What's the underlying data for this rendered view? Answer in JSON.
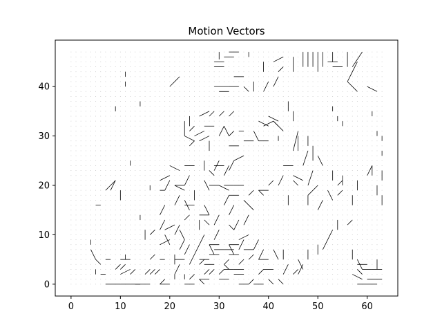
{
  "chart_data": {
    "type": "quiver",
    "title": "Motion Vectors",
    "xlabel": "",
    "ylabel": "",
    "xlim": [
      -3.2,
      66.2
    ],
    "ylim": [
      -2.4,
      49.4
    ],
    "xticks": [
      0,
      10,
      20,
      30,
      40,
      50,
      60
    ],
    "yticks": [
      0,
      10,
      20,
      30,
      40
    ],
    "grid": false,
    "grid_points": {
      "x_start": 0,
      "x_end": 63,
      "y_start": 0,
      "y_end": 47,
      "step": 1
    },
    "line_color": "#000000",
    "dot_color": "#bbbbbb",
    "vectors": [
      [
        30,
        47,
        0,
        -1.5
      ],
      [
        32,
        47,
        2,
        0
      ],
      [
        33,
        46,
        -2,
        0
      ],
      [
        31,
        45,
        -2,
        0
      ],
      [
        31,
        44,
        -2,
        0
      ],
      [
        35,
        42,
        -2,
        0
      ],
      [
        36,
        47,
        0,
        -1
      ],
      [
        43,
        46,
        -2,
        -1
      ],
      [
        45,
        46,
        0,
        -3
      ],
      [
        47,
        47,
        0,
        -3
      ],
      [
        48,
        47,
        0,
        -3
      ],
      [
        49,
        47,
        0,
        -3
      ],
      [
        50,
        47,
        0,
        -4
      ],
      [
        51,
        47,
        0,
        -3
      ],
      [
        53,
        47,
        0,
        -2
      ],
      [
        56,
        47,
        0,
        -3
      ],
      [
        54,
        45,
        -2,
        0
      ],
      [
        55,
        44,
        -2,
        0
      ],
      [
        57,
        44,
        2,
        3
      ],
      [
        58,
        45,
        -2,
        -4
      ],
      [
        60,
        40,
        2,
        -1
      ],
      [
        56,
        41,
        2,
        -2
      ],
      [
        40,
        41,
        -1,
        -2
      ],
      [
        42,
        42,
        -1,
        -2
      ],
      [
        43,
        44,
        -1,
        -1
      ],
      [
        39,
        45,
        0,
        -2
      ],
      [
        34,
        40,
        -2,
        0
      ],
      [
        32,
        40,
        -3,
        0
      ],
      [
        32,
        39,
        -2,
        0
      ],
      [
        35,
        40,
        1,
        -1
      ],
      [
        20,
        40,
        2,
        2
      ],
      [
        11,
        43,
        0,
        -1
      ],
      [
        11,
        41,
        0,
        -1
      ],
      [
        9,
        36,
        0,
        -1
      ],
      [
        14,
        37,
        0,
        -1
      ],
      [
        37,
        41,
        0,
        -2
      ],
      [
        44,
        37,
        0,
        -2
      ],
      [
        45,
        35,
        0,
        -2
      ],
      [
        53,
        36,
        0,
        -1
      ],
      [
        54,
        34,
        0,
        -1
      ],
      [
        55,
        33,
        0,
        -1
      ],
      [
        61,
        35,
        0,
        -1
      ],
      [
        24,
        34,
        0,
        -2
      ],
      [
        26,
        34,
        2,
        1
      ],
      [
        28,
        34,
        1,
        1
      ],
      [
        30,
        34,
        1,
        1
      ],
      [
        32,
        34,
        1,
        1
      ],
      [
        29,
        32,
        -2,
        0
      ],
      [
        27,
        31,
        -2,
        -1
      ],
      [
        25,
        32,
        -1,
        -1
      ],
      [
        23,
        33,
        0,
        -3
      ],
      [
        23,
        30,
        2,
        -1
      ],
      [
        24,
        28,
        1,
        1
      ],
      [
        26,
        29,
        2,
        1
      ],
      [
        28,
        29,
        0,
        -2
      ],
      [
        30,
        30,
        1,
        2
      ],
      [
        31,
        32,
        1,
        -2
      ],
      [
        33,
        31,
        -1,
        -1
      ],
      [
        35,
        31,
        -1,
        0
      ],
      [
        37,
        31,
        1,
        -2
      ],
      [
        38,
        33,
        2,
        -1
      ],
      [
        39,
        32,
        2,
        1
      ],
      [
        40,
        34,
        2,
        -1
      ],
      [
        41,
        33,
        1,
        -1
      ],
      [
        43,
        31,
        -2,
        2
      ],
      [
        42,
        30,
        0,
        -1
      ],
      [
        40,
        29,
        -2,
        0
      ],
      [
        37,
        29,
        -2,
        0
      ],
      [
        34,
        28,
        -2,
        0
      ],
      [
        35,
        26,
        -2,
        -1
      ],
      [
        33,
        25,
        -1,
        -2
      ],
      [
        31,
        24,
        -2,
        0
      ],
      [
        29,
        23,
        1,
        2
      ],
      [
        27,
        25,
        0,
        -2
      ],
      [
        25,
        24,
        -2,
        0
      ],
      [
        24,
        22,
        -1,
        -2
      ],
      [
        22,
        23,
        -2,
        1
      ],
      [
        20,
        22,
        -2,
        -1
      ],
      [
        21,
        20,
        2,
        -1
      ],
      [
        23,
        20,
        -2,
        0
      ],
      [
        25,
        19,
        0,
        -2
      ],
      [
        27,
        21,
        1,
        -2
      ],
      [
        29,
        22,
        -1,
        1
      ],
      [
        31,
        22,
        1,
        2
      ],
      [
        33,
        20,
        -2,
        0
      ],
      [
        35,
        20,
        -2,
        0
      ],
      [
        32,
        19,
        -2,
        1
      ],
      [
        30,
        20,
        -2,
        0
      ],
      [
        34,
        18,
        -2,
        0
      ],
      [
        36,
        18,
        1,
        1
      ],
      [
        38,
        19,
        1,
        -1
      ],
      [
        40,
        19,
        -2,
        0
      ],
      [
        41,
        21,
        -1,
        -1
      ],
      [
        42,
        20,
        1,
        2
      ],
      [
        45,
        24,
        -2,
        0
      ],
      [
        47,
        24,
        1,
        3
      ],
      [
        45,
        27,
        1,
        4
      ],
      [
        46,
        30,
        0,
        -3
      ],
      [
        48,
        30,
        0,
        -2
      ],
      [
        49,
        28,
        0,
        -3
      ],
      [
        50,
        26,
        1,
        -2
      ],
      [
        49,
        23,
        -1,
        -3
      ],
      [
        50,
        20,
        -2,
        -2
      ],
      [
        52,
        19,
        1,
        -2
      ],
      [
        51,
        17,
        -1,
        -2
      ],
      [
        48,
        18,
        0,
        -2
      ],
      [
        47,
        21,
        -2,
        1
      ],
      [
        45,
        21,
        1,
        -1
      ],
      [
        44,
        18,
        0,
        -2
      ],
      [
        53,
        23,
        0,
        -2
      ],
      [
        55,
        22,
        0,
        -2
      ],
      [
        54,
        20,
        1,
        1
      ],
      [
        55,
        19,
        -1,
        -1
      ],
      [
        57,
        18,
        0,
        -2
      ],
      [
        58,
        21,
        0,
        -2
      ],
      [
        60,
        22,
        1,
        2
      ],
      [
        61,
        24,
        0,
        -2
      ],
      [
        63,
        23,
        0,
        -2
      ],
      [
        62,
        20,
        0,
        -2
      ],
      [
        63,
        18,
        0,
        -2
      ],
      [
        63,
        27,
        0,
        -1
      ],
      [
        62,
        31,
        0,
        -1
      ],
      [
        63,
        30,
        0,
        -1
      ],
      [
        5,
        16,
        1,
        0
      ],
      [
        7,
        19,
        2,
        2
      ],
      [
        9,
        21,
        -1,
        -2
      ],
      [
        10,
        19,
        0,
        -2
      ],
      [
        12,
        25,
        0,
        -1
      ],
      [
        14,
        14,
        0,
        -1
      ],
      [
        19,
        16,
        -1,
        -2
      ],
      [
        18,
        19,
        1,
        0
      ],
      [
        20,
        21,
        -1,
        -2
      ],
      [
        16,
        20,
        0,
        -1
      ],
      [
        22,
        18,
        -1,
        -2
      ],
      [
        23,
        17,
        1,
        -2
      ],
      [
        25,
        16,
        -2,
        0
      ],
      [
        27,
        16,
        1,
        -2
      ],
      [
        28,
        14,
        -2,
        0
      ],
      [
        30,
        14,
        -1,
        -2
      ],
      [
        31,
        16,
        1,
        2
      ],
      [
        33,
        16,
        -1,
        -2
      ],
      [
        35,
        17,
        2,
        -2
      ],
      [
        36,
        14,
        -1,
        -2
      ],
      [
        34,
        13,
        -1,
        -2
      ],
      [
        32,
        12,
        1,
        -1
      ],
      [
        30,
        11,
        -1,
        -2
      ],
      [
        28,
        12,
        -1,
        1
      ],
      [
        27,
        10,
        -1,
        -2
      ],
      [
        26,
        13,
        0,
        -2
      ],
      [
        24,
        14,
        -1,
        -1
      ],
      [
        22,
        12,
        -1,
        -2
      ],
      [
        21,
        12,
        -2,
        -1
      ],
      [
        19,
        13,
        -1,
        -2
      ],
      [
        17,
        11,
        -1,
        -1
      ],
      [
        15,
        11,
        0,
        -2
      ],
      [
        19,
        10,
        1,
        -2
      ],
      [
        20,
        9,
        -2,
        -1
      ],
      [
        22,
        11,
        1,
        -2
      ],
      [
        23,
        9,
        -1,
        -2
      ],
      [
        24,
        8,
        -1,
        -2
      ],
      [
        26,
        8,
        -1,
        -2
      ],
      [
        28,
        8,
        1,
        -2
      ],
      [
        30,
        8,
        -2,
        0
      ],
      [
        32,
        8,
        1,
        -2
      ],
      [
        34,
        8,
        -2,
        0
      ],
      [
        35,
        9,
        -1,
        -2
      ],
      [
        36,
        10,
        -2,
        -1
      ],
      [
        38,
        9,
        -1,
        -2
      ],
      [
        37,
        7,
        -2,
        0
      ],
      [
        39,
        7,
        -1,
        -2
      ],
      [
        40,
        5,
        -2,
        0
      ],
      [
        41,
        7,
        1,
        -2
      ],
      [
        43,
        7,
        0,
        -2
      ],
      [
        44,
        4,
        -1,
        -2
      ],
      [
        46,
        5,
        1,
        -2
      ],
      [
        45,
        2,
        1,
        1
      ],
      [
        47,
        4,
        -1,
        -2
      ],
      [
        48,
        7,
        0,
        -2
      ],
      [
        50,
        8,
        0,
        -2
      ],
      [
        52,
        9,
        -1,
        -2
      ],
      [
        53,
        11,
        -1,
        -2
      ],
      [
        54,
        13,
        0,
        -2
      ],
      [
        56,
        12,
        1,
        1
      ],
      [
        57,
        7,
        0,
        -2
      ],
      [
        58,
        5,
        1,
        -2
      ],
      [
        60,
        4,
        -2,
        0
      ],
      [
        61,
        3,
        -2,
        0
      ],
      [
        62,
        5,
        0,
        -2
      ],
      [
        63,
        3,
        -2,
        0
      ],
      [
        63,
        1,
        -3,
        0
      ],
      [
        62,
        0,
        -2,
        0
      ],
      [
        60,
        0,
        -2,
        0
      ],
      [
        59,
        2,
        -1,
        1
      ],
      [
        57,
        2,
        2,
        -1
      ],
      [
        4,
        7,
        1,
        -2
      ],
      [
        5,
        5,
        1,
        -1
      ],
      [
        5,
        3,
        0,
        -1
      ],
      [
        4,
        9,
        0,
        -1
      ],
      [
        6,
        2,
        1,
        0
      ],
      [
        7,
        0,
        1,
        0
      ],
      [
        8,
        5,
        -1,
        0
      ],
      [
        9,
        3,
        1,
        1
      ],
      [
        10,
        2,
        2,
        1
      ],
      [
        11,
        4,
        -1,
        -1
      ],
      [
        12,
        5,
        -2,
        0
      ],
      [
        13,
        3,
        -1,
        -1
      ],
      [
        11,
        6,
        0,
        -1
      ],
      [
        10,
        0,
        -2,
        0
      ],
      [
        12,
        0,
        -2,
        0
      ],
      [
        14,
        0,
        -2,
        0
      ],
      [
        16,
        0,
        -3,
        0
      ],
      [
        15,
        2,
        1,
        1
      ],
      [
        17,
        3,
        -1,
        -1
      ],
      [
        16,
        5,
        1,
        1
      ],
      [
        18,
        5,
        1,
        0
      ],
      [
        18,
        3,
        -1,
        -1
      ],
      [
        19,
        1,
        -1,
        -1
      ],
      [
        20,
        0,
        -2,
        0
      ],
      [
        21,
        2,
        0,
        -1
      ],
      [
        22,
        4,
        -1,
        -2
      ],
      [
        23,
        2,
        0,
        -1
      ],
      [
        24,
        1,
        1,
        1
      ],
      [
        25,
        0,
        -2,
        0
      ],
      [
        26,
        1,
        1,
        -1
      ],
      [
        27,
        2,
        1,
        1
      ],
      [
        28,
        1,
        -2,
        0
      ],
      [
        29,
        3,
        -1,
        -1
      ],
      [
        30,
        2,
        1,
        1
      ],
      [
        31,
        4,
        1,
        -1
      ],
      [
        32,
        1,
        -2,
        0
      ],
      [
        33,
        3,
        -2,
        0
      ],
      [
        34,
        4,
        1,
        1
      ],
      [
        35,
        2,
        -2,
        0
      ],
      [
        36,
        0,
        -2,
        0
      ],
      [
        37,
        1,
        -1,
        -1
      ],
      [
        38,
        2,
        1,
        1
      ],
      [
        39,
        0,
        -2,
        0
      ],
      [
        40,
        1,
        1,
        -1
      ],
      [
        41,
        3,
        -2,
        0
      ],
      [
        42,
        1,
        1,
        -1
      ],
      [
        36,
        5,
        1,
        1
      ],
      [
        34,
        6,
        -2,
        0
      ],
      [
        32,
        5,
        -1,
        -1
      ],
      [
        30,
        6,
        -2,
        0
      ],
      [
        28,
        5,
        -2,
        0
      ],
      [
        26,
        4,
        1,
        1
      ],
      [
        25,
        6,
        -1,
        -2
      ],
      [
        23,
        5,
        -2,
        0
      ],
      [
        21,
        6,
        0,
        -2
      ],
      [
        29,
        4,
        -2,
        0
      ],
      [
        31,
        7,
        -2,
        0
      ],
      [
        33,
        7,
        -2,
        0
      ],
      [
        35,
        3,
        -2,
        0
      ]
    ]
  }
}
